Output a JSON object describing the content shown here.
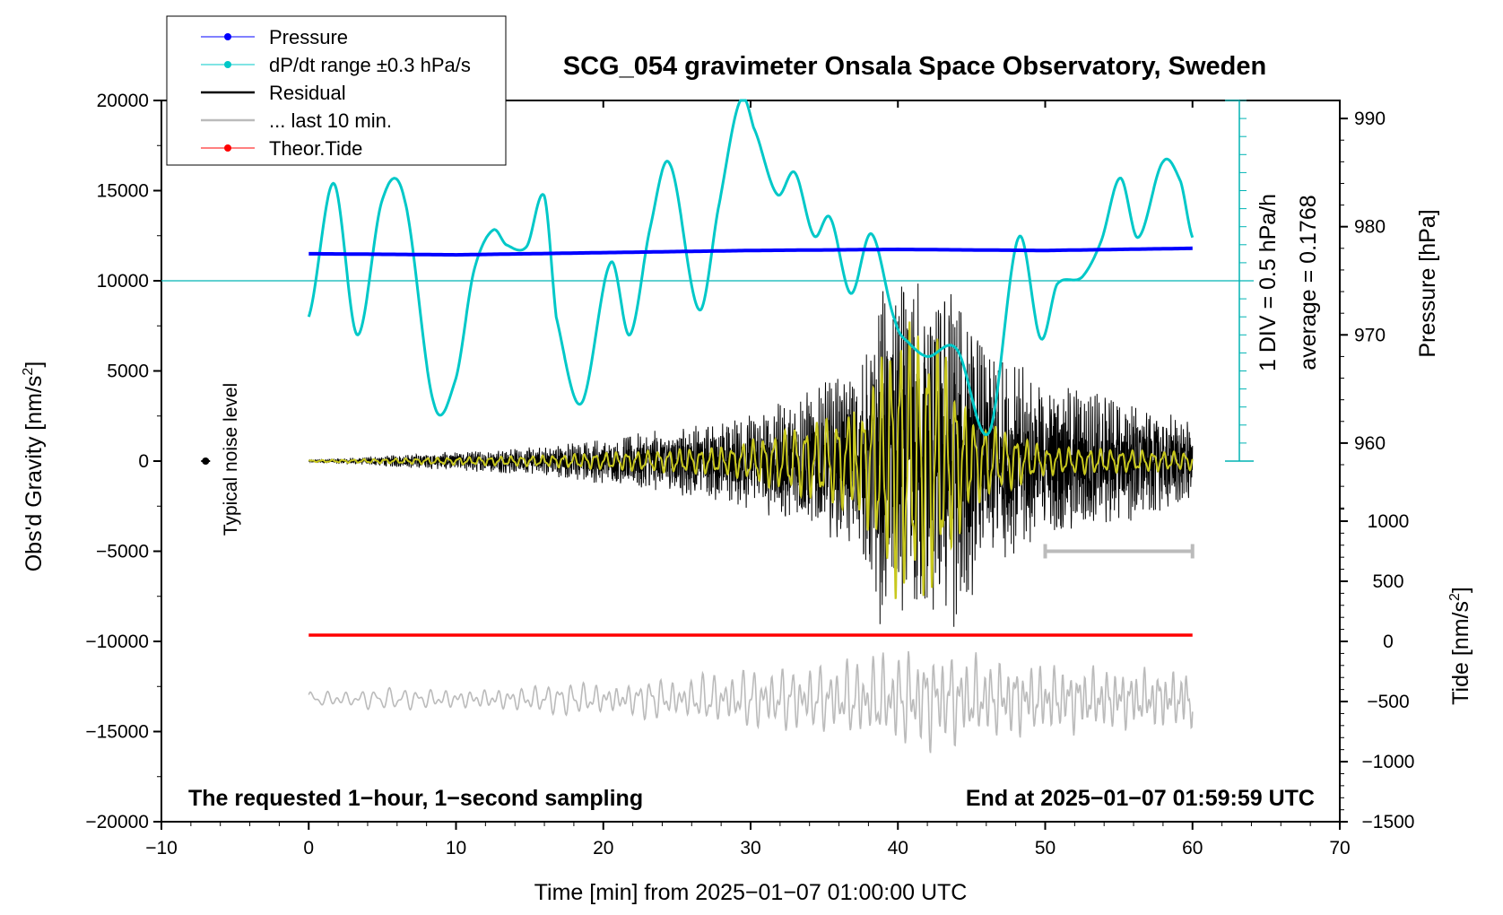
{
  "chart_data": {
    "type": "line",
    "title": "SCG_054 gravimeter Onsala Space Observatory, Sweden",
    "xlabel": "Time [min] from 2025−01−07 01:00:00 UTC",
    "ylabel_left": "Obs'd Gravity [nm/s²]",
    "ylabel_left_main": "Obs'd Gravity [nm/s",
    "ylabel_left_sup": "2",
    "ylabel_left_tail": "]",
    "ylabel_right_pressure": "Pressure [hPa]",
    "ylabel_right_tide": "Tide [nm/s²]",
    "ylabel_right_tide_main": "Tide [nm/s",
    "ylabel_right_tide_sup": "2",
    "ylabel_right_tide_tail": "]",
    "xlim": [
      -10,
      70
    ],
    "ylim": [
      -20000,
      20000
    ],
    "x_ticks": [
      "−10",
      "0",
      "10",
      "20",
      "30",
      "40",
      "50",
      "60",
      "70"
    ],
    "y_ticks": [
      "20000",
      "15000",
      "10000",
      "5000",
      "0",
      "−5000",
      "−10000",
      "−15000",
      "−20000"
    ],
    "pressure_axis": {
      "ticks": [
        "990",
        "980",
        "970",
        "960"
      ],
      "values": [
        990,
        980,
        970,
        960
      ],
      "zero_at_gravity": 10000,
      "scale_nm_per_hPa": 600
    },
    "tide_axis": {
      "ticks": [
        "1000",
        "500",
        "0",
        "−500",
        "−1000",
        "−1500"
      ],
      "values": [
        1000,
        500,
        0,
        -500,
        -1000,
        -1500
      ],
      "zero_at_gravity": -10000,
      "scale_nm_per_unit": 6.67
    },
    "dpdt_scale": {
      "label_div": "1 DIV = 0.5 hPa/h",
      "label_avg": "average = 0.1768",
      "divisions": 20
    },
    "annotations": {
      "noise": "Typical noise level",
      "bottom_left": "The requested 1−hour, 1−second sampling",
      "bottom_right": "End at 2025−01−07 01:59:59 UTC"
    },
    "legend": [
      {
        "label": "Pressure",
        "color": "#0000ff"
      },
      {
        "label": "dP/dt range ±0.3 hPa/s",
        "color": "#00c8c8"
      },
      {
        "label": "Residual",
        "color": "#000000"
      },
      {
        "label": "... last 10 min.",
        "color": "#bbbbbb"
      },
      {
        "label": "Theor.Tide",
        "color": "#ff0000"
      }
    ],
    "series": [
      {
        "name": "Pressure",
        "color": "#0000ff",
        "x": [
          0,
          10,
          20,
          30,
          40,
          50,
          60
        ],
        "hPa": [
          977.5,
          977.4,
          977.6,
          977.8,
          977.9,
          977.8,
          978.0
        ]
      },
      {
        "name": "dP/dt",
        "color": "#00c8c8",
        "x": [
          0,
          1.7,
          3.3,
          5.0,
          6.5,
          8.5,
          10,
          11.2,
          12.5,
          13.4,
          14.8,
          16.0,
          16.8,
          18.5,
          20.5,
          21.8,
          23.2,
          24.5,
          26.5,
          27.8,
          29.3,
          30.2,
          31.8,
          33.0,
          34.3,
          35.4,
          36.8,
          38.2,
          39.8,
          40.8,
          42.0,
          44.0,
          46.2,
          48.2,
          49.7,
          50.8,
          52.5,
          53.8,
          55.1,
          56.3,
          58.0,
          59.2,
          60.0
        ],
        "values": [
          8000,
          15400,
          7000,
          14500,
          14500,
          3200,
          4600,
          10500,
          12800,
          12000,
          11900,
          14700,
          8000,
          3200,
          11000,
          7000,
          13000,
          16500,
          8400,
          14000,
          20000,
          18500,
          14800,
          16000,
          12500,
          13500,
          9300,
          12600,
          7800,
          6500,
          5800,
          6200,
          1600,
          12400,
          6800,
          9800,
          10200,
          12200,
          15700,
          12400,
          16600,
          15500,
          12400
        ]
      },
      {
        "name": "Residual",
        "color": "#000000",
        "x": [
          0,
          15.5,
          28.5,
          37.5,
          39,
          41,
          44,
          46,
          50,
          55,
          60
        ],
        "amplitude": [
          50,
          700,
          2000,
          4500,
          8500,
          9000,
          8500,
          5500,
          4000,
          3200,
          2000
        ]
      },
      {
        "name": "Residual (yellow overlay)",
        "color": "#c8c81e",
        "x": [
          0,
          15.5,
          28.5,
          37.5,
          40,
          42.5,
          45,
          50,
          60
        ],
        "amplitude": [
          50,
          300,
          800,
          3000,
          8000,
          7500,
          2500,
          800,
          500
        ]
      },
      {
        "name": "... last 10 min.",
        "color": "#bbbbbb",
        "x": [
          0,
          10,
          20,
          26,
          30,
          35,
          38,
          40,
          42,
          44,
          46,
          50,
          55,
          59,
          60
        ],
        "amplitude": [
          450,
          550,
          800,
          1100,
          1500,
          1700,
          2100,
          2400,
          2500,
          2300,
          2000,
          1700,
          1500,
          1400,
          1600
        ]
      },
      {
        "name": "Theor.Tide",
        "color": "#ff0000",
        "x": [
          0,
          60
        ],
        "values": [
          -9650,
          -9650
        ]
      }
    ],
    "last10_bar": {
      "x": [
        50,
        60
      ],
      "y": -5000,
      "color": "#bbbbbb"
    },
    "noise_marker": {
      "x": -7,
      "y": 0
    }
  }
}
